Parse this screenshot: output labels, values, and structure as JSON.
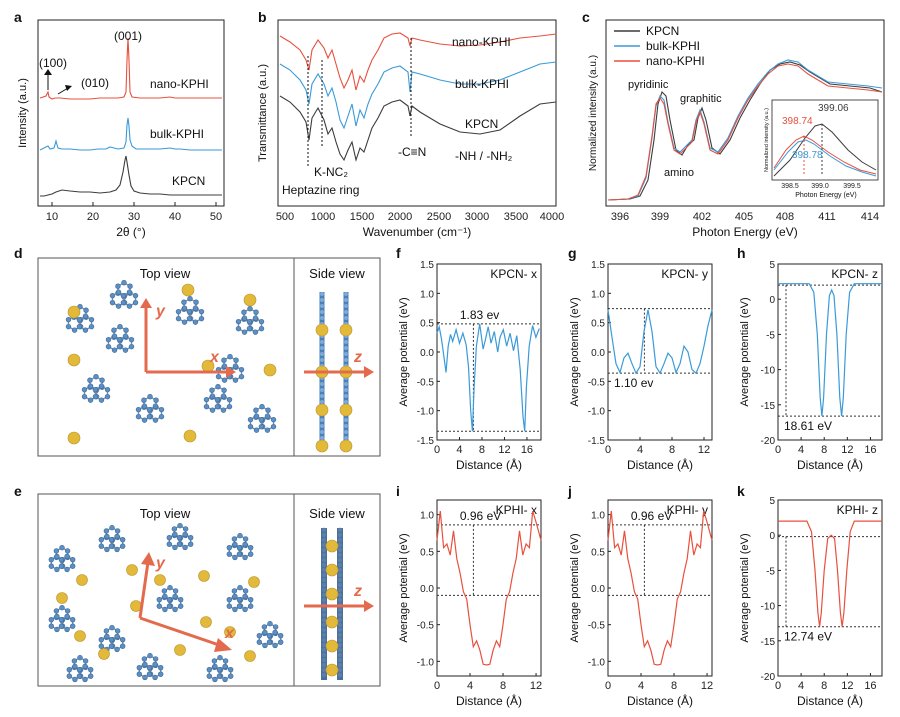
{
  "colors": {
    "red": "#e8503e",
    "blue": "#3a9ad9",
    "black": "#3c3c3c",
    "gold": "#e3b93a",
    "node": "#5c8fc4",
    "arrow": "#e36a4d"
  },
  "panel_labels": [
    "a",
    "b",
    "c",
    "d",
    "e",
    "f",
    "g",
    "h",
    "i",
    "j",
    "k"
  ],
  "chart_data": [
    {
      "id": "a",
      "type": "line",
      "xlabel": "2θ (°)",
      "ylabel": "Intensity (a.u.)",
      "xlim": [
        5,
        55
      ],
      "xticks": [
        10,
        20,
        30,
        40,
        50
      ],
      "series": [
        {
          "name": "nano-KPHI",
          "color": "red"
        },
        {
          "name": "bulk-KPHI",
          "color": "blue"
        },
        {
          "name": "KPCN",
          "color": "black"
        }
      ],
      "annotations": [
        "(001)",
        "(100)",
        "(010)"
      ]
    },
    {
      "id": "b",
      "type": "line",
      "xlabel": "Wavenumber (cm⁻¹)",
      "ylabel": "Transmittance (a.u.)",
      "xlim": [
        400,
        4000
      ],
      "xticks": [
        500,
        1000,
        1500,
        2000,
        2500,
        3000,
        3500,
        4000
      ],
      "series": [
        {
          "name": "nano-KPHI",
          "color": "red"
        },
        {
          "name": "bulk-KPHI",
          "color": "blue"
        },
        {
          "name": "KPCN",
          "color": "black"
        }
      ],
      "annotations": [
        "Heptazine ring",
        "K-NC₂",
        "-C≡N",
        "-NH / -NH₂"
      ]
    },
    {
      "id": "c",
      "type": "line",
      "xlabel": "Photon Energy (eV)",
      "ylabel": "Normalized intensity (a.u.)",
      "xlim": [
        395,
        415
      ],
      "xticks": [
        396,
        399,
        402,
        405,
        408,
        411,
        414
      ],
      "series": [
        {
          "name": "KPCN",
          "color": "black"
        },
        {
          "name": "bulk-KPHI",
          "color": "blue"
        },
        {
          "name": "nano-KPHI",
          "color": "red"
        }
      ],
      "annotations": [
        "pyridinic",
        "graphitic",
        "amino"
      ],
      "inset": {
        "xlabel": "Photon Energy (eV)",
        "ylabel": "Normalized intensity (a.u.)",
        "xticks": [
          398.5,
          399.0,
          399.5
        ],
        "peaks": [
          "399.06",
          "398.74",
          "398.78"
        ]
      }
    },
    {
      "id": "f",
      "type": "line",
      "title": "KPCN- x",
      "xlabel": "Distance (Å)",
      "ylabel": "Average potential (eV)",
      "xlim": [
        0,
        18.5
      ],
      "ylim": [
        -1.5,
        1.5
      ],
      "xticks": [
        0,
        4,
        8,
        12,
        16
      ],
      "yticks": [
        -1.5,
        -1.0,
        -0.5,
        0.0,
        0.5,
        1.0,
        1.5
      ],
      "line_color": "blue",
      "label": "1.83 ev",
      "hi": 0.48,
      "lo": -1.35,
      "points": [
        [
          0,
          0.32
        ],
        [
          0.4,
          0.43
        ],
        [
          0.8,
          0.22
        ],
        [
          1.2,
          -0.05
        ],
        [
          1.6,
          -0.35
        ],
        [
          2.0,
          0.1
        ],
        [
          2.4,
          0.3
        ],
        [
          2.8,
          0.18
        ],
        [
          3.4,
          0.38
        ],
        [
          4.0,
          0.15
        ],
        [
          4.6,
          0.32
        ],
        [
          5.2,
          0.12
        ],
        [
          5.6,
          -0.25
        ],
        [
          6.0,
          -1.0
        ],
        [
          6.3,
          -1.35
        ],
        [
          6.6,
          -0.6
        ],
        [
          7.0,
          0.1
        ],
        [
          7.6,
          0.48
        ],
        [
          8.2,
          0.05
        ],
        [
          8.6,
          0.2
        ],
        [
          9.1,
          0.43
        ],
        [
          9.6,
          0.15
        ],
        [
          10.2,
          0.35
        ],
        [
          10.8,
          0.0
        ],
        [
          11.2,
          0.25
        ],
        [
          11.8,
          0.38
        ],
        [
          12.4,
          0.1
        ],
        [
          13.0,
          0.32
        ],
        [
          13.6,
          0.02
        ],
        [
          14.2,
          0.28
        ],
        [
          14.8,
          -0.3
        ],
        [
          15.3,
          -1.1
        ],
        [
          15.6,
          -1.35
        ],
        [
          15.9,
          -0.6
        ],
        [
          16.4,
          0.1
        ],
        [
          17.0,
          0.45
        ],
        [
          17.6,
          0.25
        ],
        [
          18.2,
          0.4
        ]
      ]
    },
    {
      "id": "g",
      "type": "line",
      "title": "KPCN- y",
      "xlabel": "Distance (Å)",
      "ylabel": "Average potential (eV)",
      "xlim": [
        0,
        13
      ],
      "ylim": [
        -1.5,
        1.5
      ],
      "xticks": [
        0,
        4,
        8,
        12
      ],
      "yticks": [
        -1.5,
        -1.0,
        -0.5,
        0.0,
        0.5,
        1.0,
        1.5
      ],
      "line_color": "blue",
      "label": "1.10 ev",
      "hi": 0.74,
      "lo": -0.36,
      "points": [
        [
          0,
          0.72
        ],
        [
          0.5,
          0.25
        ],
        [
          1.0,
          -0.2
        ],
        [
          1.5,
          -0.35
        ],
        [
          2.0,
          -0.1
        ],
        [
          2.5,
          -0.02
        ],
        [
          3.0,
          -0.2
        ],
        [
          3.5,
          -0.36
        ],
        [
          4.0,
          -0.25
        ],
        [
          4.5,
          0.35
        ],
        [
          5.0,
          0.72
        ],
        [
          5.5,
          0.35
        ],
        [
          6.0,
          -0.25
        ],
        [
          6.5,
          -0.36
        ],
        [
          7.0,
          -0.2
        ],
        [
          7.5,
          -0.02
        ],
        [
          8.0,
          -0.1
        ],
        [
          8.5,
          -0.35
        ],
        [
          9.0,
          -0.2
        ],
        [
          9.5,
          0.1
        ],
        [
          10.0,
          0.0
        ],
        [
          10.5,
          -0.3
        ],
        [
          11.0,
          -0.36
        ],
        [
          11.5,
          -0.2
        ],
        [
          12.0,
          0.1
        ],
        [
          12.5,
          0.45
        ],
        [
          13.0,
          0.72
        ]
      ]
    },
    {
      "id": "h",
      "type": "line",
      "title": "KPCN- z",
      "xlabel": "Distance (Å)",
      "ylabel": "Average potential (eV)",
      "xlim": [
        0,
        18
      ],
      "ylim": [
        -20,
        5
      ],
      "xticks": [
        0,
        4,
        8,
        12,
        16
      ],
      "yticks": [
        -20,
        -15,
        -10,
        -5,
        0,
        5
      ],
      "line_color": "blue",
      "label": "18.61 eV",
      "hi": 2.0,
      "lo": -16.6,
      "points": [
        [
          0,
          2.2
        ],
        [
          5.4,
          2.2
        ],
        [
          6.2,
          1.0
        ],
        [
          6.8,
          -5
        ],
        [
          7.3,
          -14
        ],
        [
          7.6,
          -16.6
        ],
        [
          7.9,
          -14
        ],
        [
          8.4,
          -5
        ],
        [
          8.9,
          0.5
        ],
        [
          9.3,
          1.3
        ],
        [
          9.7,
          0.5
        ],
        [
          10.2,
          -5
        ],
        [
          10.7,
          -14
        ],
        [
          11.0,
          -16.6
        ],
        [
          11.3,
          -14
        ],
        [
          11.8,
          -5
        ],
        [
          12.4,
          1.0
        ],
        [
          13.2,
          2.2
        ],
        [
          18,
          2.2
        ]
      ]
    },
    {
      "id": "i",
      "type": "line",
      "title": "KPHI- x",
      "xlabel": "Distance (Å)",
      "ylabel": "Average potential (eV)",
      "xlim": [
        0,
        12.6
      ],
      "ylim": [
        -1.2,
        1.2
      ],
      "xticks": [
        0,
        4,
        8,
        12
      ],
      "yticks": [
        -1.0,
        -0.5,
        0.0,
        0.5,
        1.0
      ],
      "line_color": "red",
      "label": "0.96 eV",
      "hi": 0.86,
      "lo": -0.1,
      "points": [
        [
          0,
          0.65
        ],
        [
          0.4,
          1.05
        ],
        [
          0.8,
          0.55
        ],
        [
          1.2,
          0.6
        ],
        [
          1.6,
          0.45
        ],
        [
          2.0,
          0.78
        ],
        [
          2.4,
          0.4
        ],
        [
          2.8,
          0.2
        ],
        [
          3.2,
          -0.05
        ],
        [
          3.6,
          -0.15
        ],
        [
          4.0,
          -0.5
        ],
        [
          4.4,
          -0.8
        ],
        [
          4.8,
          -0.72
        ],
        [
          5.2,
          -0.85
        ],
        [
          5.6,
          -1.04
        ],
        [
          6.0,
          -1.05
        ],
        [
          6.4,
          -1.04
        ],
        [
          6.8,
          -0.85
        ],
        [
          7.2,
          -0.72
        ],
        [
          7.6,
          -0.8
        ],
        [
          8.0,
          -0.5
        ],
        [
          8.4,
          -0.15
        ],
        [
          8.8,
          -0.05
        ],
        [
          9.2,
          0.2
        ],
        [
          9.6,
          0.4
        ],
        [
          10.0,
          0.78
        ],
        [
          10.4,
          0.45
        ],
        [
          10.8,
          0.6
        ],
        [
          11.2,
          0.55
        ],
        [
          11.6,
          1.05
        ],
        [
          12.0,
          0.9
        ],
        [
          12.6,
          0.65
        ]
      ]
    },
    {
      "id": "j",
      "type": "line",
      "title": "KPHI- y",
      "xlabel": "Distance (Å)",
      "ylabel": "Average potential (eV)",
      "xlim": [
        0,
        12.6
      ],
      "ylim": [
        -1.2,
        1.2
      ],
      "xticks": [
        0,
        4,
        8,
        12
      ],
      "yticks": [
        -1.0,
        -0.5,
        0.0,
        0.5,
        1.0
      ],
      "line_color": "red",
      "label": "0.96 eV",
      "hi": 0.86,
      "lo": -0.1,
      "points": [
        [
          0,
          0.65
        ],
        [
          0.4,
          1.05
        ],
        [
          0.8,
          0.55
        ],
        [
          1.2,
          0.6
        ],
        [
          1.6,
          0.45
        ],
        [
          2.0,
          0.78
        ],
        [
          2.4,
          0.4
        ],
        [
          2.8,
          0.2
        ],
        [
          3.2,
          -0.05
        ],
        [
          3.6,
          -0.15
        ],
        [
          4.0,
          -0.5
        ],
        [
          4.4,
          -0.8
        ],
        [
          4.8,
          -0.72
        ],
        [
          5.2,
          -0.85
        ],
        [
          5.6,
          -1.04
        ],
        [
          6.0,
          -1.05
        ],
        [
          6.4,
          -1.04
        ],
        [
          6.8,
          -0.85
        ],
        [
          7.2,
          -0.72
        ],
        [
          7.6,
          -0.8
        ],
        [
          8.0,
          -0.5
        ],
        [
          8.4,
          -0.15
        ],
        [
          8.8,
          -0.05
        ],
        [
          9.2,
          0.2
        ],
        [
          9.6,
          0.4
        ],
        [
          10.0,
          0.78
        ],
        [
          10.4,
          0.45
        ],
        [
          10.8,
          0.6
        ],
        [
          11.2,
          0.55
        ],
        [
          11.6,
          1.05
        ],
        [
          12.0,
          0.9
        ],
        [
          12.6,
          0.65
        ]
      ]
    },
    {
      "id": "k",
      "type": "line",
      "title": "KPHI- z",
      "xlabel": "Distance (Å)",
      "ylabel": "Average potential (eV)",
      "xlim": [
        0,
        18
      ],
      "ylim": [
        -20,
        5
      ],
      "xticks": [
        0,
        4,
        8,
        12,
        16
      ],
      "yticks": [
        -20,
        -15,
        -10,
        -5,
        0,
        5
      ],
      "line_color": "red",
      "label": "12.74 eV",
      "hi": -0.2,
      "lo": -13.0,
      "points": [
        [
          0,
          2.0
        ],
        [
          5.0,
          2.0
        ],
        [
          5.8,
          0.5
        ],
        [
          6.4,
          -5
        ],
        [
          6.9,
          -11
        ],
        [
          7.2,
          -13.0
        ],
        [
          7.5,
          -11
        ],
        [
          8.0,
          -5
        ],
        [
          8.6,
          -0.5
        ],
        [
          9.2,
          0.0
        ],
        [
          9.8,
          -0.5
        ],
        [
          10.3,
          -5
        ],
        [
          10.8,
          -11
        ],
        [
          11.1,
          -13.0
        ],
        [
          11.4,
          -11
        ],
        [
          11.9,
          -5
        ],
        [
          12.5,
          0.5
        ],
        [
          13.2,
          2.0
        ],
        [
          18,
          2.0
        ]
      ]
    }
  ],
  "structures": {
    "d": {
      "top_view": "Top view",
      "side_view": "Side view",
      "axes": [
        "x",
        "y",
        "z"
      ]
    },
    "e": {
      "top_view": "Top view",
      "side_view": "Side view",
      "axes": [
        "x",
        "y",
        "z"
      ]
    }
  }
}
